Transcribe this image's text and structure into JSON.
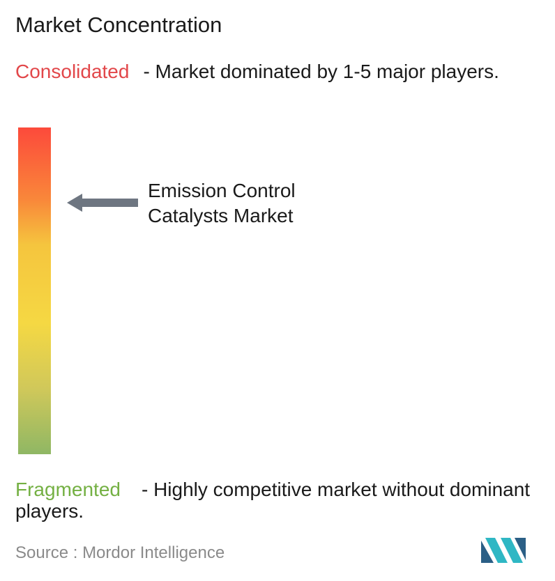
{
  "title": "Market Concentration",
  "consolidated": {
    "label": "Consolidated",
    "description": "- Market dominated by 1-5 major players."
  },
  "marker": {
    "label": "Emission Control Catalysts Market"
  },
  "fragmented": {
    "label": "Fragmented",
    "description": "- Highly competitive market without dominant players."
  },
  "source": {
    "label": "Source :",
    "name": "Mordor Intelligence"
  }
}
